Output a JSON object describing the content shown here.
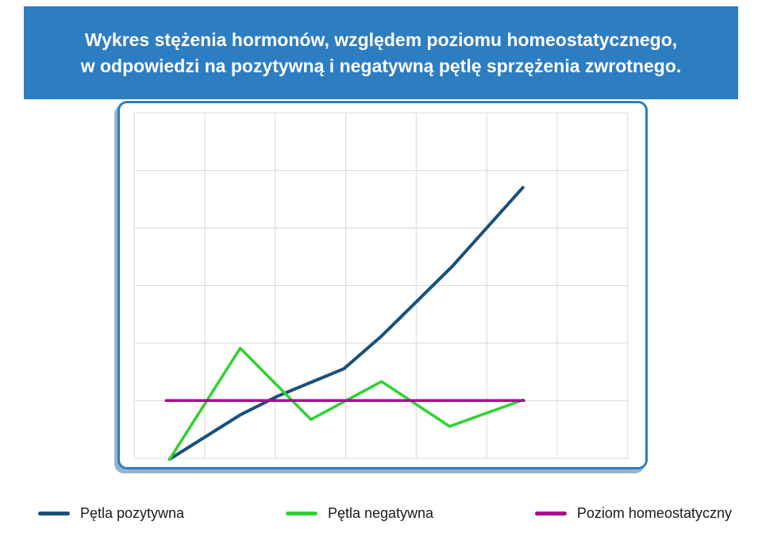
{
  "header": {
    "lines": [
      "Wykres stężenia hormonów, względem poziomu homeostatycznego,",
      "w odpowiedzi na pozytywną i negatywną pętlę sprzężenia zwrotnego."
    ]
  },
  "colors": {
    "banner_bg": "#2d7dc1",
    "card_border": "#2d7dc1",
    "grid": "#d9d9d9",
    "positive_loop": "#18517d",
    "negative_loop": "#2fd32f",
    "homeostatic": "#b2008f",
    "legend_text": "#1a1a1a"
  },
  "legend": {
    "items": [
      {
        "label": "Pętla pozytywna",
        "color": "#18517d"
      },
      {
        "label": "Pętla negatywna",
        "color": "#2fd32f"
      },
      {
        "label": "Poziom homeostatyczny",
        "color": "#b2008f"
      }
    ]
  },
  "chart_data": {
    "type": "line",
    "title": "Wykres stężenia hormonów, względem poziomu homeostatycznego, w odpowiedzi na pozytywną i negatywną pętlę sprzężenia zwrotnego.",
    "xlabel": "",
    "ylabel": "",
    "xlim": [
      0,
      10
    ],
    "ylim": [
      -1.1,
      4.9
    ],
    "grid": true,
    "axes_visible": false,
    "legend_position": "bottom",
    "homeostatic_level": 0,
    "series": [
      {
        "name": "Pętla pozytywna",
        "color": "#18517d",
        "stroke_width": 4,
        "x": [
          0.7,
          2.1,
          2.85,
          4.15,
          4.9,
          6.3,
          7.7
        ],
        "y": [
          -1.02,
          -0.25,
          0.08,
          0.55,
          1.12,
          2.33,
          3.7
        ]
      },
      {
        "name": "Pętla negatywna",
        "color": "#2fd32f",
        "stroke_width": 3.5,
        "x": [
          0.7,
          2.1,
          3.5,
          4.9,
          6.25,
          7.7
        ],
        "y": [
          -1.02,
          0.91,
          -0.33,
          0.33,
          -0.45,
          0.01
        ]
      },
      {
        "name": "Poziom homeostatyczny",
        "color": "#b2008f",
        "stroke_width": 3.5,
        "x": [
          0.63,
          7.72
        ],
        "y": [
          0,
          0
        ]
      }
    ]
  }
}
